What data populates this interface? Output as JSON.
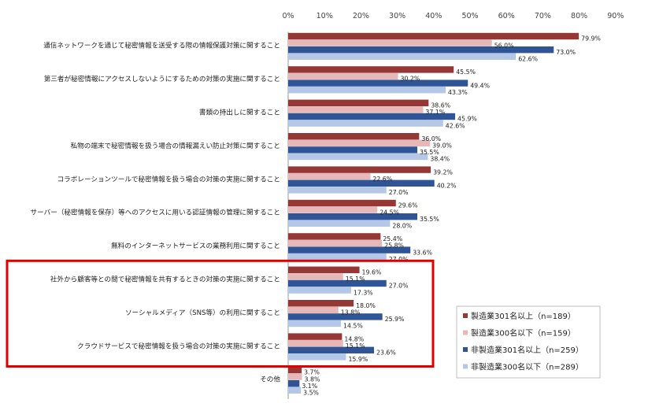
{
  "chart_data": {
    "type": "bar",
    "orientation": "horizontal",
    "categories": [
      "通信ネットワークを通じて秘密情報を送受する際の情報保護対策に関すること",
      "第三者が秘密情報にアクセスしないようにするための対策の実施に関すること",
      "書類の持出しに関すること",
      "私物の端末で秘密情報を扱う場合の情報漏えい防止対策に関すること",
      "コラボレーションツールで秘密情報を扱う場合の対策の実施に関すること",
      "サーバー（秘密情報を保存）等へのアクセスに用いる認証情報の管理に関すること",
      "無料のインターネットサービスの業務利用に関すること",
      "社外から顧客等との間で秘密情報を共有するときの対策の実施に関すること",
      "ソーシャルメディア（SNS等）の利用に関すること",
      "クラウドサービスで秘密情報を扱う場合の対策の実施に関すること",
      "その他"
    ],
    "series": [
      {
        "name": "製造業301名以上（n=189）",
        "color": "#953735",
        "values": [
          79.9,
          45.5,
          38.6,
          36.0,
          39.2,
          29.6,
          25.4,
          19.6,
          18.0,
          14.8,
          3.7
        ]
      },
      {
        "name": "製造業300名以下（n=159）",
        "color": "#e6b9b8",
        "values": [
          56.0,
          30.2,
          37.1,
          39.0,
          22.6,
          24.5,
          25.8,
          15.1,
          13.8,
          15.1,
          3.8
        ]
      },
      {
        "name": "非製造業301名以上（n=259）",
        "color": "#2f5597",
        "values": [
          73.0,
          49.4,
          45.9,
          35.5,
          40.2,
          35.5,
          33.6,
          27.0,
          25.9,
          23.6,
          3.1
        ]
      },
      {
        "name": "非製造業300名以下（n=289）",
        "color": "#b4c7e7",
        "values": [
          62.6,
          43.3,
          42.6,
          38.4,
          27.0,
          28.0,
          27.0,
          17.3,
          14.5,
          15.9,
          3.5
        ]
      }
    ],
    "value_suffix": "%",
    "xlim": [
      0,
      90
    ],
    "xticks": [
      "0%",
      "10%",
      "20%",
      "30%",
      "40%",
      "50%",
      "60%",
      "70%",
      "80%",
      "90%"
    ],
    "grid": false,
    "legend_position": "bottom-right",
    "highlight": {
      "categories": [
        7,
        8,
        9
      ],
      "color": "#e00000"
    }
  }
}
